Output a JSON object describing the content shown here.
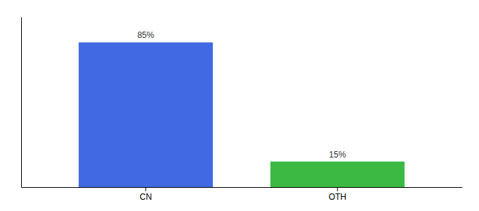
{
  "chart_data": {
    "type": "bar",
    "categories": [
      "CN",
      "OTH"
    ],
    "values": [
      85,
      15
    ],
    "value_labels": [
      "85%",
      "15%"
    ],
    "colors": [
      "#4169E1",
      "#3CB943"
    ],
    "data_labels": true,
    "ylim": [
      0,
      100
    ],
    "tick_labels": "x"
  }
}
